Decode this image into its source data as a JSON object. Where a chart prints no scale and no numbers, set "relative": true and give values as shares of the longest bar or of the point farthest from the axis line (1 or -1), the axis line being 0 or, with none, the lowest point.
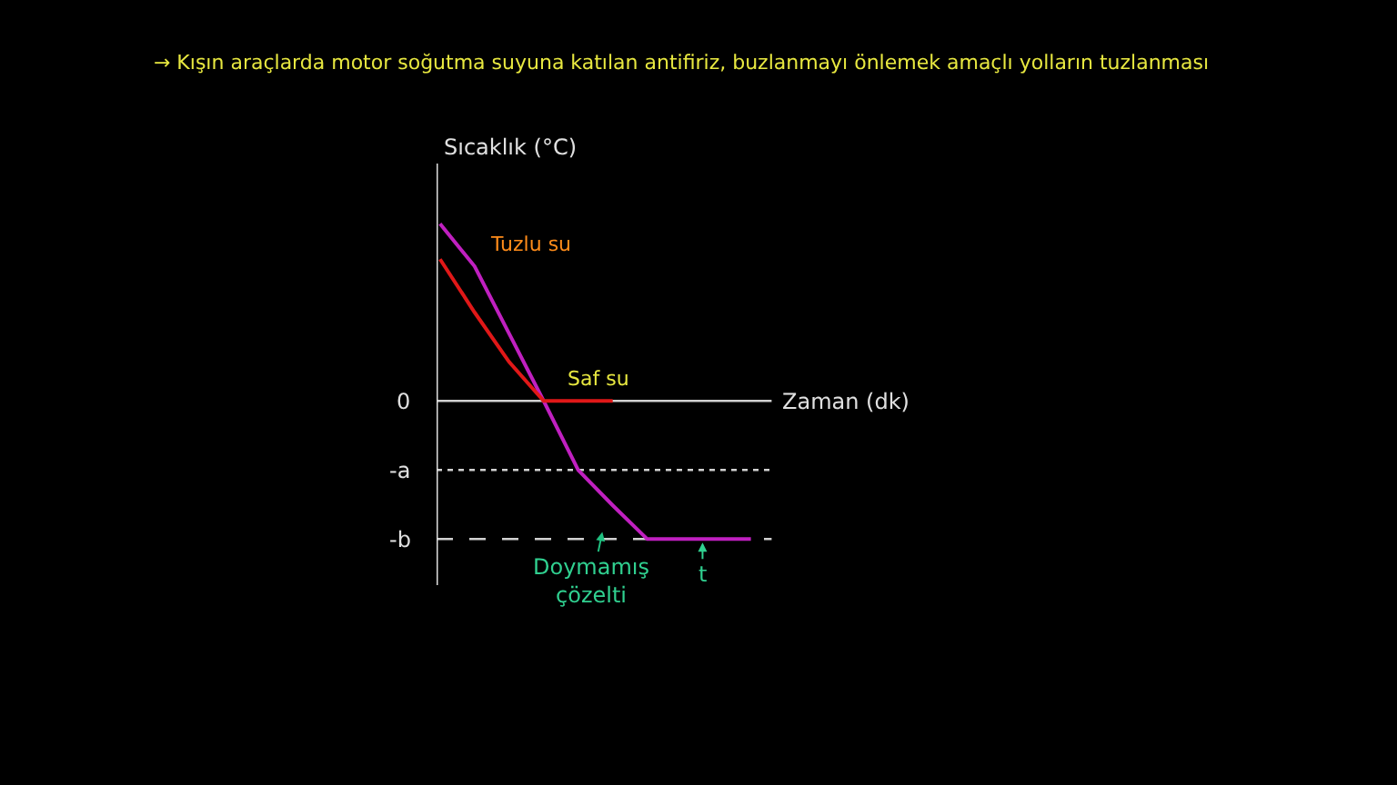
{
  "chart_data": {
    "type": "line",
    "relative": true,
    "title": "→ Kışın araçlarda motor soğutma suyuna katılan antifiriz, buzlanmayı önlemek amaçlı yolların tuzlanması",
    "xlabel": "Zaman (dk)",
    "ylabel": "Sıcaklık (°C)",
    "categories": [
      null,
      null,
      null,
      null,
      null,
      null,
      null,
      null,
      null,
      null
    ],
    "series": [
      {
        "name": "Tuzlu su",
        "color": "#c020c0",
        "values": [
          1.0,
          0.76,
          0.38,
          0,
          -0.39,
          -0.59,
          -0.78,
          -0.78,
          -0.78,
          -0.78
        ]
      },
      {
        "name": "Saf su",
        "color": "#e01818",
        "values": [
          0.8,
          0.5,
          0.22,
          0,
          0,
          0,
          null,
          null,
          null,
          null
        ]
      }
    ],
    "ref_lines": [
      {
        "axis": "y",
        "value": 0,
        "label": "0",
        "color": "#d0d0d0",
        "line_style": "solid"
      },
      {
        "axis": "y",
        "value": -0.39,
        "label": "-a",
        "color": "#d0d0d0",
        "line_style": "dotted"
      },
      {
        "axis": "y",
        "value": -0.78,
        "label": "-b",
        "color": "#d0d0d0",
        "line_style": "dashed"
      }
    ],
    "annotations": [
      "Doymamış çözelti",
      "t"
    ],
    "legend": false,
    "marker": "none",
    "line_style": "solid"
  }
}
